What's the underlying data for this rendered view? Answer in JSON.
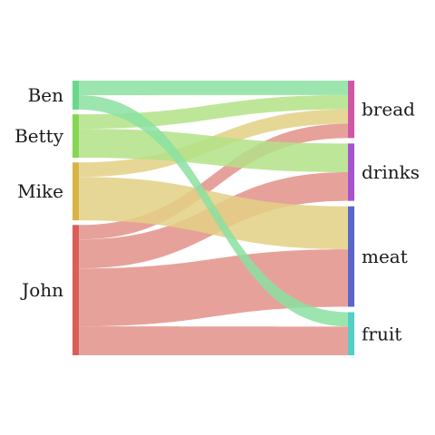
{
  "chart_data": {
    "type": "sankey",
    "sources": [
      {
        "name": "Ben",
        "color": "#8be1a1"
      },
      {
        "name": "Betty",
        "color": "#b3e287"
      },
      {
        "name": "Mike",
        "color": "#e3d085"
      },
      {
        "name": "John",
        "color": "#e3908a"
      }
    ],
    "targets": [
      {
        "name": "bread",
        "color": "#d056a6"
      },
      {
        "name": "drinks",
        "color": "#a653cf"
      },
      {
        "name": "meat",
        "color": "#5a66c9"
      },
      {
        "name": "fruit",
        "color": "#53cfc8"
      }
    ],
    "source_bar_colors": [
      "#6ad88c",
      "#86d653",
      "#d9b444",
      "#d95f57"
    ],
    "flows": [
      {
        "source": "Ben",
        "target": "bread",
        "value": 5
      },
      {
        "source": "Ben",
        "target": "fruit",
        "value": 5
      },
      {
        "source": "Betty",
        "target": "bread",
        "value": 5
      },
      {
        "source": "Betty",
        "target": "drinks",
        "value": 10
      },
      {
        "source": "Mike",
        "target": "bread",
        "value": 5
      },
      {
        "source": "Mike",
        "target": "meat",
        "value": 15
      },
      {
        "source": "John",
        "target": "bread",
        "value": 5
      },
      {
        "source": "John",
        "target": "drinks",
        "value": 10
      },
      {
        "source": "John",
        "target": "meat",
        "value": 20
      },
      {
        "source": "John",
        "target": "fruit",
        "value": 10
      }
    ]
  }
}
